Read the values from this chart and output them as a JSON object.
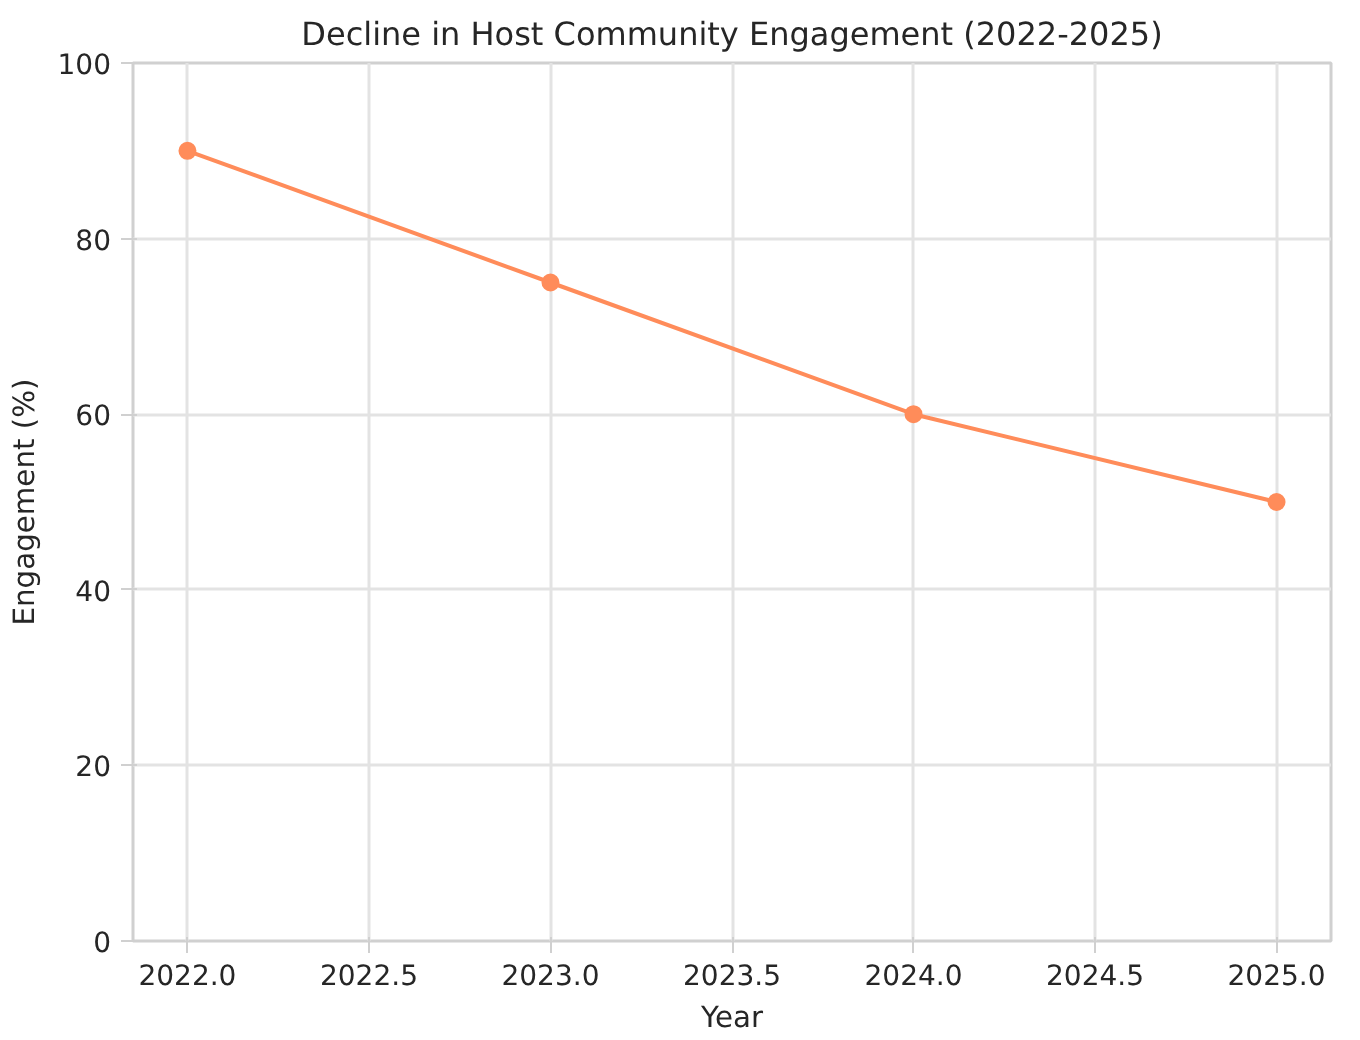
{
  "chart_data": {
    "type": "line",
    "title": "Decline in Host Community Engagement (2022-2025)",
    "xlabel": "Year",
    "ylabel": "Engagement (%)",
    "x": [
      2022,
      2023,
      2024,
      2025
    ],
    "series": [
      {
        "color": "#ff8c5a",
        "values": [
          90,
          75,
          60,
          50
        ]
      }
    ],
    "xlim": [
      2021.85,
      2025.15
    ],
    "ylim": [
      0,
      100
    ],
    "xticks": [
      {
        "value": 2022,
        "label": "2022.0"
      },
      {
        "value": 2022.5,
        "label": "2022.5"
      },
      {
        "value": 2023,
        "label": "2023.0"
      },
      {
        "value": 2023.5,
        "label": "2023.5"
      },
      {
        "value": 2024,
        "label": "2024.0"
      },
      {
        "value": 2024.5,
        "label": "2024.5"
      },
      {
        "value": 2025,
        "label": "2025.0"
      }
    ],
    "yticks": [
      0,
      20,
      40,
      60,
      80,
      100
    ],
    "grid": true,
    "marker": "circle",
    "line_style": "solid"
  }
}
